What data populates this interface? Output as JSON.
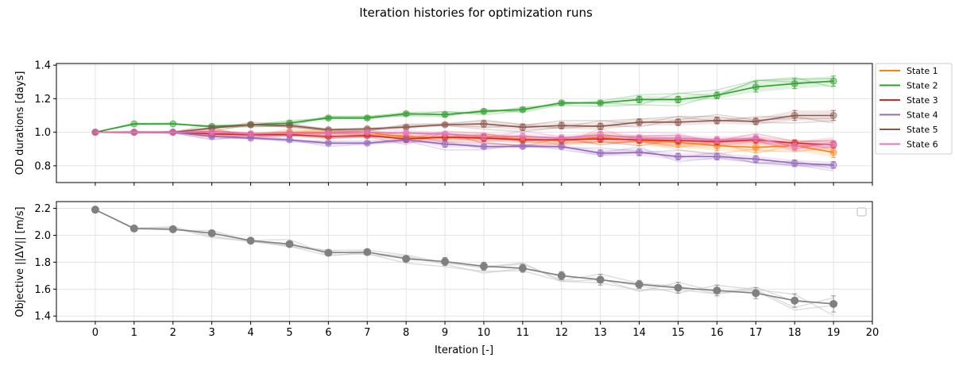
{
  "figure": {
    "title": "Iteration histories for optimization runs"
  },
  "chart_data": [
    {
      "type": "line",
      "ylabel": "OD durations [days]",
      "xlabel": "",
      "xlim": [
        -1,
        20
      ],
      "ylim": [
        0.7,
        1.41
      ],
      "x_ticks": [
        0,
        1,
        2,
        3,
        4,
        5,
        6,
        7,
        8,
        9,
        10,
        11,
        12,
        13,
        14,
        15,
        16,
        17,
        18,
        19,
        20
      ],
      "y_ticks": [
        0.8,
        1.0,
        1.2,
        1.4
      ],
      "y_tick_labels": [
        "0.8",
        "1.0",
        "1.2",
        "1.4"
      ],
      "grid": true,
      "legend_position": "outside-right",
      "x": [
        0,
        1,
        2,
        3,
        4,
        5,
        6,
        7,
        8,
        9,
        10,
        11,
        12,
        13,
        14,
        15,
        16,
        17,
        18,
        19
      ],
      "series": [
        {
          "name": "State 1",
          "color": "#ff7f0e",
          "values": [
            1.0,
            1.0,
            1.0,
            0.99,
            0.99,
            1.0,
            1.0,
            1.0,
            0.97,
            0.97,
            0.97,
            0.96,
            0.95,
            0.97,
            0.95,
            0.94,
            0.92,
            0.91,
            0.92,
            0.88
          ],
          "err": [
            0,
            0,
            0,
            0.02,
            0.01,
            0.01,
            0.01,
            0.01,
            0.02,
            0.02,
            0.02,
            0.02,
            0.02,
            0.03,
            0.03,
            0.03,
            0.03,
            0.03,
            0.03,
            0.03
          ]
        },
        {
          "name": "State 2",
          "color": "#2ca02c",
          "values": [
            1.0,
            1.05,
            1.05,
            1.035,
            1.045,
            1.055,
            1.085,
            1.085,
            1.11,
            1.105,
            1.125,
            1.135,
            1.175,
            1.175,
            1.195,
            1.195,
            1.22,
            1.27,
            1.29,
            1.305
          ],
          "err": [
            0,
            0,
            0,
            0.005,
            0.005,
            0.01,
            0.01,
            0.01,
            0.01,
            0.01,
            0.01,
            0.01,
            0.01,
            0.01,
            0.02,
            0.02,
            0.02,
            0.03,
            0.03,
            0.03
          ]
        },
        {
          "name": "State 3",
          "color": "#d62728",
          "values": [
            1.0,
            1.0,
            1.0,
            0.99,
            0.985,
            0.985,
            0.975,
            0.98,
            0.96,
            0.97,
            0.965,
            0.955,
            0.955,
            0.96,
            0.955,
            0.95,
            0.945,
            0.955,
            0.935,
            0.925
          ],
          "err": [
            0,
            0,
            0,
            0.01,
            0.01,
            0.01,
            0.01,
            0.01,
            0.02,
            0.02,
            0.02,
            0.02,
            0.02,
            0.02,
            0.02,
            0.02,
            0.02,
            0.02,
            0.02,
            0.02
          ]
        },
        {
          "name": "State 4",
          "color": "#9467bd",
          "values": [
            1.0,
            1.0,
            1.0,
            0.975,
            0.965,
            0.955,
            0.935,
            0.935,
            0.955,
            0.93,
            0.915,
            0.915,
            0.915,
            0.875,
            0.88,
            0.855,
            0.855,
            0.84,
            0.815,
            0.805
          ],
          "err": [
            0,
            0,
            0,
            0.01,
            0.01,
            0.01,
            0.01,
            0.01,
            0.01,
            0.02,
            0.01,
            0.01,
            0.01,
            0.02,
            0.02,
            0.02,
            0.02,
            0.02,
            0.02,
            0.02
          ]
        },
        {
          "name": "State 5",
          "color": "#8c564b",
          "values": [
            1.0,
            1.0,
            1.0,
            1.025,
            1.045,
            1.04,
            1.015,
            1.02,
            1.03,
            1.045,
            1.05,
            1.03,
            1.04,
            1.035,
            1.06,
            1.06,
            1.07,
            1.065,
            1.1,
            1.1
          ],
          "err": [
            0,
            0,
            0,
            0.01,
            0.01,
            0.01,
            0.01,
            0.01,
            0.01,
            0.01,
            0.02,
            0.02,
            0.02,
            0.02,
            0.02,
            0.02,
            0.02,
            0.02,
            0.03,
            0.03
          ]
        },
        {
          "name": "State 6",
          "color": "#e377c2",
          "values": [
            1.0,
            1.0,
            1.0,
            1.0,
            0.99,
            0.995,
            0.995,
            1.0,
            0.995,
            0.99,
            0.975,
            0.975,
            0.965,
            0.985,
            0.965,
            0.965,
            0.955,
            0.965,
            0.915,
            0.93
          ],
          "err": [
            0,
            0,
            0,
            0.01,
            0.01,
            0.01,
            0.01,
            0.01,
            0.01,
            0.01,
            0.02,
            0.02,
            0.02,
            0.02,
            0.02,
            0.02,
            0.02,
            0.02,
            0.02,
            0.02
          ]
        }
      ]
    },
    {
      "type": "line",
      "ylabel": "Objective ||ΔV|| [m/s]",
      "xlabel": "Iteration [-]",
      "xlim": [
        -1,
        20
      ],
      "ylim": [
        1.36,
        2.25
      ],
      "x_ticks": [
        0,
        1,
        2,
        3,
        4,
        5,
        6,
        7,
        8,
        9,
        10,
        11,
        12,
        13,
        14,
        15,
        16,
        17,
        18,
        19,
        20
      ],
      "y_ticks": [
        1.4,
        1.6,
        1.8,
        2.0,
        2.2
      ],
      "y_tick_labels": [
        "1.4",
        "1.6",
        "1.8",
        "2.0",
        "2.2"
      ],
      "grid": true,
      "legend_position": "upper-right",
      "x": [
        0,
        1,
        2,
        3,
        4,
        5,
        6,
        7,
        8,
        9,
        10,
        11,
        12,
        13,
        14,
        15,
        16,
        17,
        18,
        19
      ],
      "series": [
        {
          "color": "#808080",
          "values": [
            2.19,
            2.05,
            2.045,
            2.015,
            1.96,
            1.935,
            1.87,
            1.875,
            1.825,
            1.805,
            1.77,
            1.755,
            1.7,
            1.67,
            1.635,
            1.61,
            1.59,
            1.57,
            1.515,
            1.49
          ],
          "err": [
            0,
            0,
            0.01,
            0.02,
            0.01,
            0.02,
            0.01,
            0.02,
            0.02,
            0.03,
            0.03,
            0.03,
            0.03,
            0.04,
            0.03,
            0.04,
            0.04,
            0.04,
            0.05,
            0.06
          ]
        }
      ]
    }
  ]
}
